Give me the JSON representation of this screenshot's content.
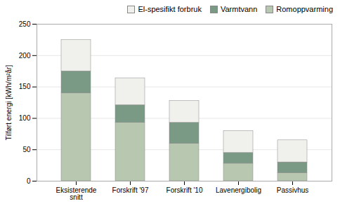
{
  "chart_data": {
    "type": "bar",
    "stacked": true,
    "categories": [
      "Eksisterende\nsnitt",
      "Forskrift '97",
      "Forskrift '10",
      "Lavenergibolig",
      "Passivhus"
    ],
    "series": [
      {
        "name": "Romoppvarming",
        "color": "#b8c8b0",
        "values": [
          140,
          93,
          60,
          28,
          13
        ]
      },
      {
        "name": "Varmtvann",
        "color": "#7a9a85",
        "values": [
          35,
          28,
          33,
          17,
          17
        ]
      },
      {
        "name": "El-spesifikt forbruk",
        "color": "#f0f0ec",
        "values": [
          50,
          43,
          35,
          35,
          35
        ]
      }
    ],
    "ylabel": "Tilført energi [kWh/m²år]",
    "ylim": [
      0,
      250
    ],
    "yticks": [
      0,
      50,
      100,
      150,
      200,
      250
    ],
    "grid": true,
    "legend": "upper right"
  }
}
